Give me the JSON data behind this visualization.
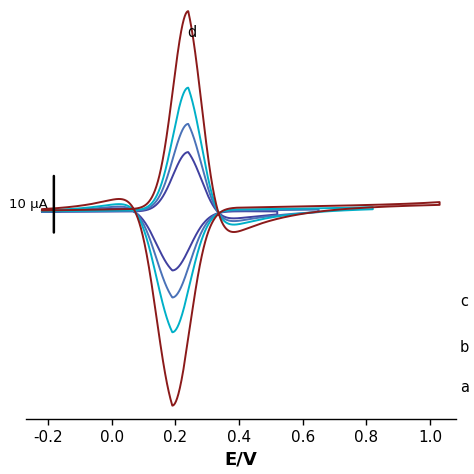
{
  "xlabel": "E/V",
  "xlim": [
    -0.27,
    1.08
  ],
  "ylim": [
    -1.05,
    1.05
  ],
  "xticks": [
    -0.2,
    0.0,
    0.2,
    0.4,
    0.6,
    0.8,
    1.0
  ],
  "scale_bar_label": "10 μA",
  "curve_order": [
    "a",
    "b",
    "c",
    "d"
  ],
  "colors": {
    "a": "#4040a0",
    "b": "#4a72b8",
    "c": "#00b0c8",
    "d": "#8b1a1a"
  },
  "scales": {
    "a": 0.3,
    "b": 0.44,
    "c": 0.62,
    "d": 1.0
  },
  "E0": 0.215,
  "E_low": -0.22,
  "lw": 1.4,
  "background_color": "#ffffff",
  "text_color": "#000000"
}
